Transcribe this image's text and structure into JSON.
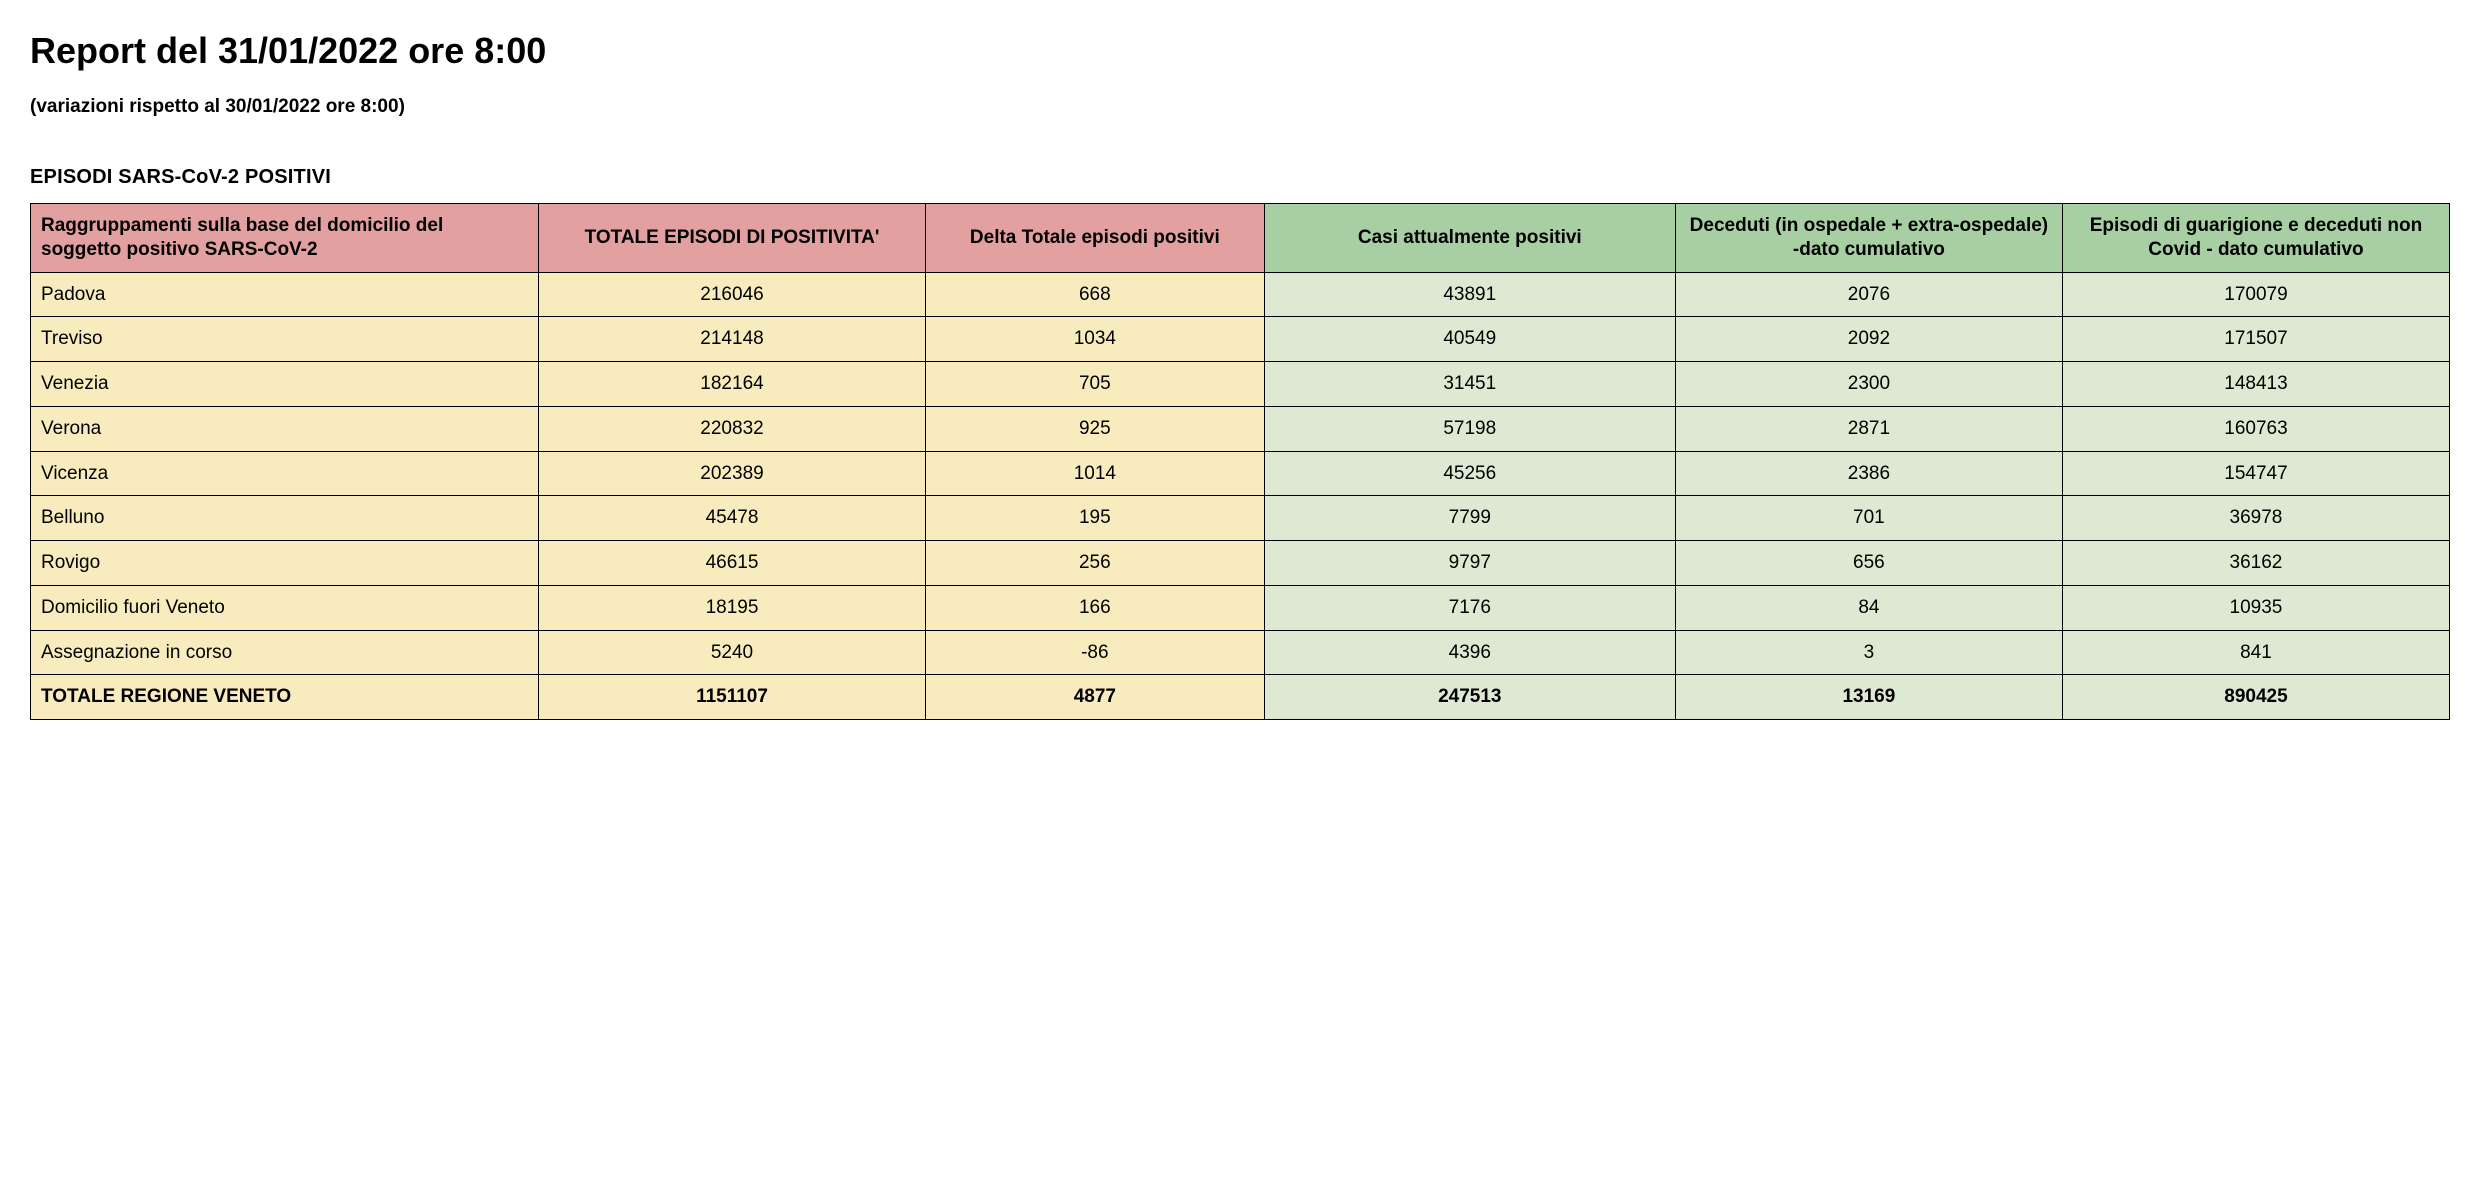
{
  "title": "Report del 31/01/2022 ore 8:00",
  "subtitle": "(variazioni rispetto al 30/01/2022 ore 8:00)",
  "section_title": "EPISODI SARS-CoV-2 POSITIVI",
  "table": {
    "type": "table",
    "header_colors": {
      "pink": "#e3a0a0",
      "green": "#a8cfa4"
    },
    "body_colors": {
      "yellow": "#f8ecbf",
      "green": "#dde9d3"
    },
    "border_color": "#000000",
    "font_size": 19,
    "columns": [
      {
        "label": "Raggruppamenti sulla base del domicilio del soggetto positivo SARS-CoV-2",
        "header_color": "pink",
        "body_color": "yellow",
        "align": "left",
        "width_pct": 21
      },
      {
        "label": "TOTALE EPISODI DI POSITIVITA'",
        "header_color": "pink",
        "body_color": "yellow",
        "align": "center",
        "width_pct": 16
      },
      {
        "label": "Delta Totale episodi positivi",
        "header_color": "pink",
        "body_color": "yellow",
        "align": "center",
        "width_pct": 14
      },
      {
        "label": "Casi attualmente positivi",
        "header_color": "green",
        "body_color": "green",
        "align": "center",
        "width_pct": 17
      },
      {
        "label": "Deceduti (in ospedale + extra-ospedale) -dato cumulativo",
        "header_color": "green",
        "body_color": "green",
        "align": "center",
        "width_pct": 16
      },
      {
        "label": "Episodi di guarigione e deceduti non Covid - dato cumulativo",
        "header_color": "green",
        "body_color": "green",
        "align": "center",
        "width_pct": 16
      }
    ],
    "rows": [
      [
        "Padova",
        "216046",
        "668",
        "43891",
        "2076",
        "170079"
      ],
      [
        "Treviso",
        "214148",
        "1034",
        "40549",
        "2092",
        "171507"
      ],
      [
        "Venezia",
        "182164",
        "705",
        "31451",
        "2300",
        "148413"
      ],
      [
        "Verona",
        "220832",
        "925",
        "57198",
        "2871",
        "160763"
      ],
      [
        "Vicenza",
        "202389",
        "1014",
        "45256",
        "2386",
        "154747"
      ],
      [
        "Belluno",
        "45478",
        "195",
        "7799",
        "701",
        "36978"
      ],
      [
        "Rovigo",
        "46615",
        "256",
        "9797",
        "656",
        "36162"
      ],
      [
        "Domicilio fuori Veneto",
        "18195",
        "166",
        "7176",
        "84",
        "10935"
      ],
      [
        "Assegnazione in corso",
        "5240",
        "-86",
        "4396",
        "3",
        "841"
      ]
    ],
    "total_row": [
      "TOTALE REGIONE VENETO",
      "1151107",
      "4877",
      "247513",
      "13169",
      "890425"
    ]
  }
}
